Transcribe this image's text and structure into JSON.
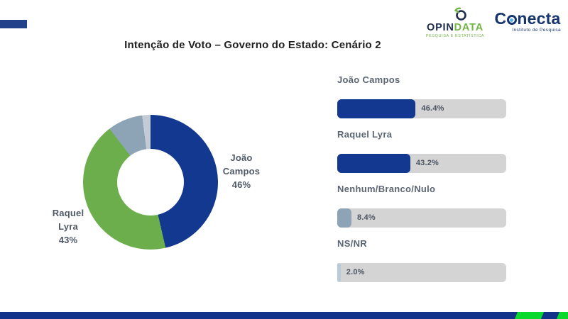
{
  "header": {
    "title": "Intenção de Voto – Governo do Estado: Cenário 2",
    "accent_color": "#22418b"
  },
  "logos": {
    "opindata": {
      "word_part1": "OPIN",
      "word_part2": "DATA",
      "tagline": "PESQUISA E ESTATÍSTICA",
      "navy": "#1d2c4d",
      "green": "#71b544"
    },
    "conecta": {
      "word_part1": "C",
      "word_part2": "necta",
      "tagline": "Instituto de Pesquisa",
      "navy": "#16356e"
    }
  },
  "chart_data": [
    {
      "type": "pie",
      "donut": true,
      "title": "Intenção de Voto – Governo do Estado: Cenário 2",
      "categories": [
        "João Campos",
        "Raquel Lyra",
        "Nenhum/Branco/Nulo",
        "NS/NR"
      ],
      "values": [
        46.4,
        43.2,
        8.4,
        2.0
      ],
      "colors": [
        "#12388f",
        "#6cae4b",
        "#8ca4b5",
        "#c3ccd4"
      ],
      "start_angle_deg": 0,
      "visible_labels": [
        {
          "side": "right",
          "line1": "João",
          "line2": "Campos",
          "line3": "46%"
        },
        {
          "side": "left",
          "line1": "Raquel",
          "line2": "Lyra",
          "line3": "43%"
        }
      ]
    },
    {
      "type": "bar",
      "orientation": "horizontal",
      "categories": [
        "João Campos",
        "Raquel Lyra",
        "Nenhum/Branco/Nulo",
        "NS/NR"
      ],
      "values": [
        46.4,
        43.2,
        8.4,
        2.0
      ],
      "value_labels": [
        "46.4%",
        "43.2%",
        "8.4%",
        "2.0%"
      ],
      "colors": [
        "#12388f",
        "#12388f",
        "#8ca4b5",
        "#b9cbd6"
      ],
      "track_color": "#d4d4d4",
      "xlim": [
        0,
        100
      ],
      "grid": false,
      "legend": "none"
    }
  ],
  "footer": {
    "navy": "#13338a",
    "green": "#08d92c"
  }
}
